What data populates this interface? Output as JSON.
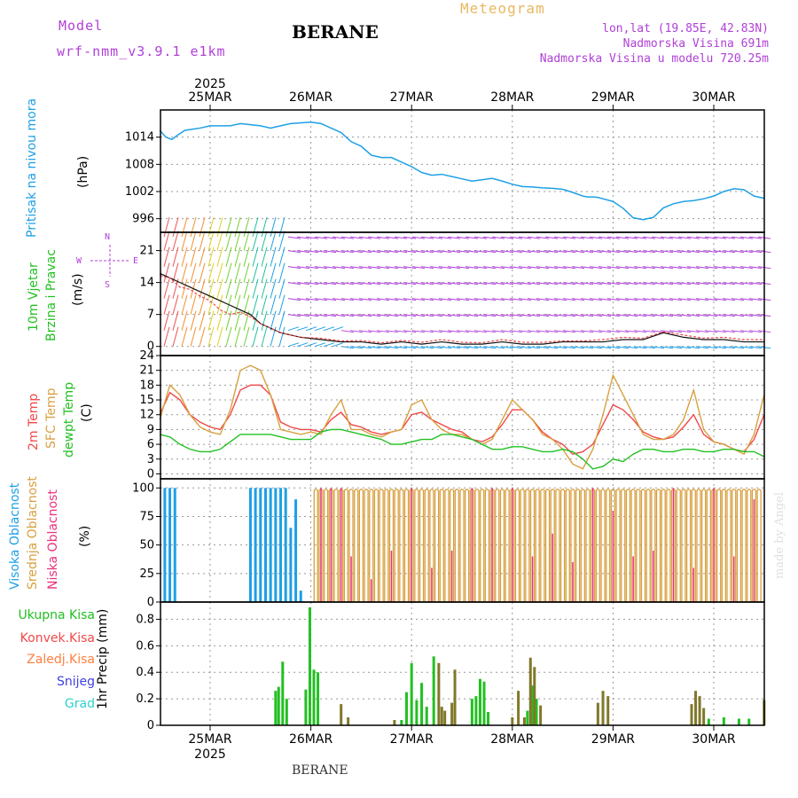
{
  "header": {
    "model_label": "Model",
    "model_name": "wrf-nmm_v3.9.1 e1km",
    "station": "BERANE",
    "product": "Meteogram",
    "lonlat": "lon,lat (19.85E, 42.83N)",
    "elevation": "Nadmorska Visina 691m",
    "model_elevation": "Nadmorska Visina u modelu 720.25m"
  },
  "footer": {
    "station": "BERANE",
    "credit": "made by Angel"
  },
  "colors": {
    "purple": "#b040d8",
    "orange": "#e8b860",
    "blue": "#1ea0e6",
    "green": "#22c022",
    "red": "#f04848",
    "tan": "#d8a040",
    "pink": "#e8307c",
    "darkgreen": "#80782a",
    "cyan": "#30d0d0",
    "snow": "#4040e0"
  },
  "time_axis": {
    "top_year": "2025",
    "bottom_year": "2025",
    "days": [
      "25MAR",
      "26MAR",
      "27MAR",
      "28MAR",
      "29MAR",
      "30MAR"
    ]
  },
  "chart_data": [
    {
      "type": "line",
      "panel": "pressure",
      "ylabel_main": "Pritisak na nivou mora",
      "ylabel_unit": "(hPa)",
      "yticks": [
        "1014",
        "1008",
        "1002",
        "996"
      ],
      "ylim": [
        993,
        1020
      ],
      "grid": true,
      "x_days": [
        0,
        0.06,
        0.12,
        0.18,
        0.25,
        0.4,
        0.5,
        0.7,
        0.8,
        1.0,
        1.1,
        1.2,
        1.3,
        1.5,
        1.6,
        1.7,
        1.8,
        1.9,
        2.0,
        2.1,
        2.2,
        2.3,
        2.4,
        2.5,
        2.6,
        2.7,
        2.8,
        2.9,
        3.0,
        3.1,
        3.2,
        3.3,
        3.4,
        3.5,
        3.6,
        3.7,
        3.8,
        3.9,
        4.0,
        4.1,
        4.2,
        4.25,
        4.3,
        4.35,
        4.4,
        4.5,
        4.6,
        4.7,
        4.8,
        4.9,
        5.0,
        5.1,
        5.2,
        5.3,
        5.4,
        5.5,
        5.6,
        5.7,
        5.8,
        5.9,
        6.0
      ],
      "series": [
        {
          "values": [
            1015.5,
            1014,
            1013.5,
            1014.5,
            1015.5,
            1016,
            1016.5,
            1016.5,
            1017,
            1016.5,
            1016,
            1016.5,
            1017,
            1017.3,
            1017,
            1016,
            1015,
            1013,
            1012,
            1010,
            1009.5,
            1009.5,
            1008.5,
            1007.5,
            1006.2,
            1005.6,
            1005.8,
            1005.3,
            1004.8,
            1004.3,
            1004.6,
            1004.9,
            1004.3,
            1003.6,
            1003.1,
            1003,
            1002.8,
            1002.7,
            1002.5,
            1001.8,
            1001,
            1000.8,
            1000.8,
            1000.7,
            1000.4,
            999.8,
            998.3,
            996.2,
            995.8,
            996.3,
            998.4,
            999.3,
            999.8,
            1000,
            1000.4,
            1001,
            1002,
            1002.6,
            1002.4,
            1001,
            1000.5
          ]
        }
      ]
    },
    {
      "type": "line",
      "panel": "wind",
      "ylabel_main": "10m Vjetar",
      "ylabel_sub": "Brzina i Pravac",
      "ylabel_unit": "(m/s)",
      "compass": {
        "n": "N",
        "s": "S",
        "e": "E",
        "w": "W"
      },
      "yticks": [
        "21",
        "14",
        "7",
        "0"
      ],
      "ylim": [
        -2,
        25
      ],
      "grid": true,
      "x_days": [
        0,
        0.1,
        0.2,
        0.3,
        0.4,
        0.5,
        0.6,
        0.7,
        0.8,
        0.9,
        1.0,
        1.2,
        1.4,
        1.6,
        1.8,
        2.0,
        2.2,
        2.4,
        2.6,
        2.8,
        3.0,
        3.2,
        3.4,
        3.6,
        3.8,
        4.0,
        4.2,
        4.4,
        4.6,
        4.8,
        5.0,
        5.2,
        5.4,
        5.6,
        5.8,
        6.0
      ],
      "series": [
        {
          "name": "",
          "values": [
            16,
            15,
            14,
            13,
            12,
            11,
            10,
            9,
            8,
            7,
            5,
            3,
            2,
            1.5,
            1,
            1,
            0.5,
            1,
            0.5,
            1,
            0.5,
            0.5,
            1,
            0.5,
            0.5,
            1,
            1,
            1,
            1.5,
            1.5,
            3,
            2,
            1.5,
            1.5,
            1,
            1
          ]
        },
        {
          "name": "",
          "values": [
            15.5,
            15,
            13,
            12.5,
            11,
            10,
            8,
            7,
            7.5,
            6.5,
            5,
            3,
            2,
            1.8,
            1.2,
            1.3,
            0.8,
            1.3,
            0.9,
            1.5,
            0.9,
            0.8,
            1.5,
            0.9,
            0.9,
            1.2,
            1.2,
            1.5,
            2,
            1.8,
            3.2,
            2.5,
            1.8,
            2,
            1.5,
            1.5
          ]
        }
      ]
    },
    {
      "type": "line",
      "panel": "temperature",
      "ylabel_a": "2m Temp",
      "ylabel_b": "SFC Temp",
      "ylabel_c": "dewpt Temp",
      "ylabel_unit": "(C)",
      "yticks": [
        "24",
        "21",
        "18",
        "15",
        "12",
        "9",
        "6",
        "3",
        "0"
      ],
      "ylim": [
        -1,
        24
      ],
      "grid": true,
      "x_days": [
        0,
        0.1,
        0.2,
        0.3,
        0.4,
        0.5,
        0.6,
        0.7,
        0.8,
        0.9,
        1.0,
        1.1,
        1.2,
        1.3,
        1.4,
        1.5,
        1.6,
        1.7,
        1.8,
        1.9,
        2.0,
        2.1,
        2.2,
        2.3,
        2.4,
        2.5,
        2.6,
        2.7,
        2.8,
        2.9,
        3.0,
        3.1,
        3.2,
        3.3,
        3.4,
        3.5,
        3.6,
        3.7,
        3.8,
        3.9,
        4.0,
        4.1,
        4.2,
        4.3,
        4.4,
        4.5,
        4.6,
        4.7,
        4.8,
        4.9,
        5.0,
        5.1,
        5.2,
        5.3,
        5.4,
        5.5,
        5.6,
        5.7,
        5.8,
        5.9,
        6.0
      ],
      "series": [
        {
          "name": "2m Temp",
          "values": [
            12,
            16.5,
            15,
            12,
            10.5,
            9.5,
            9,
            12,
            17,
            18,
            18,
            16,
            10.5,
            9.5,
            9,
            9,
            8.5,
            11,
            12.5,
            10,
            9.5,
            8.5,
            8,
            8.5,
            9,
            12,
            12.5,
            11,
            10,
            9,
            8.5,
            7,
            6.5,
            7.5,
            10,
            13,
            13,
            11,
            8.5,
            7,
            6,
            4,
            4.5,
            6,
            10,
            14,
            13,
            11,
            8.5,
            7.5,
            7,
            7.5,
            9.5,
            12,
            8,
            6.5,
            6,
            5,
            4.5,
            7,
            12
          ]
        },
        {
          "name": "SFC Temp",
          "values": [
            11,
            18,
            16,
            12,
            9.5,
            8.5,
            8,
            13,
            21,
            22,
            21,
            16,
            9,
            8.5,
            8,
            8.5,
            8,
            12,
            15,
            9,
            9,
            8,
            7.5,
            8.5,
            9,
            14,
            15,
            11,
            9,
            8,
            8,
            7,
            6,
            7,
            11,
            15,
            13,
            11,
            8,
            7,
            5,
            2,
            1,
            5,
            12,
            20,
            16,
            12,
            8,
            7,
            7,
            8,
            11,
            17,
            9,
            6.5,
            6,
            5,
            4,
            8,
            16
          ]
        },
        {
          "name": "dewpt Temp",
          "values": [
            8,
            7.5,
            6,
            5,
            4.5,
            4.5,
            5,
            6.5,
            8,
            8,
            8,
            8,
            7.5,
            7,
            7,
            7,
            8.5,
            9,
            9,
            8.5,
            8,
            7.5,
            7,
            6,
            6,
            6.5,
            7,
            7,
            8,
            8,
            7.5,
            7,
            6,
            5,
            5,
            5.5,
            5.5,
            5,
            4.5,
            4.5,
            5,
            4.5,
            3,
            1,
            1.5,
            3,
            2.5,
            4,
            5,
            5,
            4.5,
            4.5,
            5,
            5,
            4.5,
            4.5,
            5,
            5,
            4.5,
            4.5,
            3.5
          ]
        }
      ]
    },
    {
      "type": "bar",
      "panel": "cloud",
      "ylabel_a": "Visoka Oblacnost",
      "ylabel_b": "Srednja Oblacnost",
      "ylabel_c": "Niska Oblacnost",
      "ylabel_unit": "(%)",
      "yticks": [
        "100",
        "75",
        "50",
        "25",
        "0"
      ],
      "ylim": [
        0,
        108
      ],
      "grid": true,
      "series": [
        {
          "name": "Visoka Oblacnost",
          "x_days": [
            0.05,
            0.1,
            0.15,
            0.9,
            0.95,
            1.0,
            1.05,
            1.1,
            1.15,
            1.2,
            1.25,
            1.3,
            1.35,
            1.4
          ],
          "values": [
            100,
            100,
            100,
            100,
            100,
            100,
            100,
            100,
            100,
            100,
            100,
            65,
            90,
            10
          ]
        },
        {
          "name": "Srednja Oblacnost",
          "x_days": [
            1.55,
            1.6,
            1.65,
            1.7,
            1.75,
            1.8,
            1.85,
            1.9,
            1.95,
            2.0,
            2.05,
            2.1,
            2.15,
            2.2,
            2.25,
            2.3,
            2.35,
            2.4,
            2.45,
            2.5,
            2.55,
            2.6,
            2.65,
            2.7,
            2.75,
            2.8,
            2.85,
            2.9,
            2.95,
            3.0,
            3.05,
            3.1,
            3.15,
            3.2,
            3.25,
            3.3,
            3.35,
            3.4,
            3.45,
            3.5,
            3.55,
            3.6,
            3.65,
            3.7,
            3.75,
            3.8,
            3.85,
            3.9,
            3.95,
            4.0,
            4.05,
            4.1,
            4.15,
            4.2,
            4.25,
            4.3,
            4.35,
            4.4,
            4.45,
            4.5,
            4.55,
            4.6,
            4.65,
            4.7,
            4.75,
            4.8,
            4.85,
            4.9,
            4.95,
            5.0,
            5.05,
            5.1,
            5.15,
            5.2,
            5.25,
            5.3,
            5.35,
            5.4,
            5.45,
            5.5,
            5.55,
            5.6,
            5.65,
            5.7,
            5.75,
            5.8,
            5.85,
            5.9,
            5.95
          ],
          "values": [
            100,
            100,
            100,
            100,
            100,
            100,
            100,
            100,
            100,
            100,
            100,
            100,
            100,
            100,
            100,
            100,
            100,
            100,
            100,
            100,
            100,
            100,
            100,
            100,
            100,
            100,
            100,
            100,
            100,
            100,
            100,
            100,
            100,
            100,
            100,
            100,
            100,
            100,
            100,
            100,
            100,
            100,
            100,
            100,
            100,
            100,
            100,
            100,
            100,
            100,
            100,
            100,
            100,
            100,
            100,
            100,
            100,
            100,
            100,
            100,
            100,
            100,
            100,
            100,
            100,
            100,
            100,
            100,
            100,
            100,
            100,
            100,
            100,
            100,
            100,
            100,
            100,
            100,
            100,
            100,
            100,
            100,
            100,
            100,
            100,
            100,
            100,
            100,
            100
          ]
        },
        {
          "name": "Niska Oblacnost",
          "x_days": [
            1.6,
            1.7,
            1.8,
            1.9,
            2.1,
            2.3,
            2.5,
            2.7,
            2.9,
            3.1,
            3.3,
            3.5,
            3.7,
            3.9,
            4.1,
            4.3,
            4.5,
            4.7,
            4.9,
            5.1,
            5.3,
            5.5,
            5.7,
            5.9
          ],
          "values": [
            100,
            100,
            100,
            40,
            20,
            45,
            100,
            30,
            45,
            100,
            100,
            100,
            40,
            60,
            35,
            100,
            80,
            40,
            45,
            100,
            30,
            100,
            40,
            90
          ]
        }
      ]
    },
    {
      "type": "bar",
      "panel": "precip",
      "legend": [
        "Ukupna Kisa",
        "Konvek.Kisa",
        "Zaledj.Kisa",
        "Snijeg",
        "Grad"
      ],
      "ylabel_unit": "1hr Precip (mm)",
      "yticks": [
        "0.8",
        "0.6",
        "0.4",
        "0.2",
        "0"
      ],
      "ylim": [
        0,
        0.93
      ],
      "grid": true,
      "series": [
        {
          "name": "Ukupna Kisa",
          "x_days": [
            1.15,
            1.18,
            1.22,
            1.26,
            1.45,
            1.49,
            1.53,
            1.57,
            2.4,
            2.45,
            2.5,
            2.55,
            2.6,
            2.65,
            2.72,
            3.1,
            3.14,
            3.18,
            3.22,
            3.26,
            3.65,
            3.7,
            3.74,
            5.45,
            5.6,
            5.75,
            5.85
          ],
          "values": [
            0.26,
            0.29,
            0.48,
            0.2,
            0.27,
            0.89,
            0.42,
            0.4,
            0.04,
            0.25,
            0.47,
            0.19,
            0.32,
            0.14,
            0.52,
            0.2,
            0.22,
            0.35,
            0.33,
            0.1,
            0.11,
            0.3,
            0.2,
            0.05,
            0.06,
            0.05,
            0.05
          ]
        },
        {
          "name": "Konvek.Kisa",
          "x_days": [
            1.8,
            1.87,
            2.33,
            2.77,
            2.8,
            2.83,
            2.9,
            2.93,
            3.5,
            3.56,
            3.62,
            3.68,
            3.72,
            3.78,
            4.35,
            4.4,
            4.45,
            5.28,
            5.32,
            5.36,
            5.4,
            6.0
          ],
          "values": [
            0.16,
            0.06,
            0.04,
            0.47,
            0.14,
            0.11,
            0.17,
            0.42,
            0.06,
            0.26,
            0.06,
            0.51,
            0.44,
            0.15,
            0.17,
            0.26,
            0.22,
            0.16,
            0.26,
            0.22,
            0.13,
            0.19
          ]
        }
      ]
    }
  ]
}
